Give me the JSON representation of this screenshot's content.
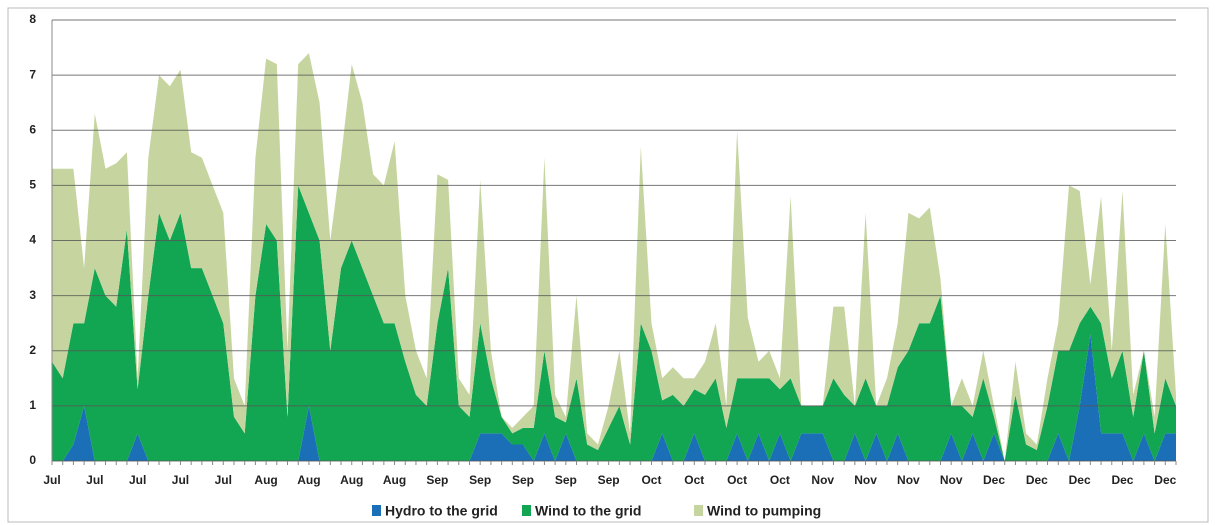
{
  "chart_data": {
    "type": "stacked-area",
    "categories": [
      "Jul",
      null,
      null,
      null,
      "Jul",
      null,
      null,
      null,
      "Jul",
      null,
      null,
      null,
      "Jul",
      null,
      null,
      null,
      "Jul",
      null,
      null,
      null,
      "Aug",
      null,
      null,
      null,
      "Aug",
      null,
      null,
      null,
      "Aug",
      null,
      null,
      null,
      "Aug",
      null,
      null,
      null,
      "Sep",
      null,
      null,
      null,
      "Sep",
      null,
      null,
      null,
      "Sep",
      null,
      null,
      null,
      "Sep",
      null,
      null,
      null,
      "Sep",
      null,
      null,
      null,
      "Oct",
      null,
      null,
      null,
      "Oct",
      null,
      null,
      null,
      "Oct",
      null,
      null,
      null,
      "Oct",
      null,
      null,
      null,
      "Nov",
      null,
      null,
      null,
      "Nov",
      null,
      null,
      null,
      "Nov",
      null,
      null,
      null,
      "Nov",
      null,
      null,
      null,
      "Dec",
      null,
      null,
      null,
      "Dec",
      null,
      null,
      null,
      "Dec",
      null,
      null,
      null,
      "Dec",
      null,
      null,
      null,
      "Dec",
      null
    ],
    "series": [
      {
        "name": "Hydro to the grid",
        "color": "#1a6fb7",
        "values": [
          0,
          0,
          0.3,
          1.0,
          0,
          0,
          0,
          0,
          0.5,
          0,
          0,
          0,
          0,
          0,
          0,
          0,
          0,
          0,
          0,
          0,
          0,
          0,
          0,
          0,
          1.0,
          0,
          0,
          0,
          0,
          0,
          0,
          0,
          0,
          0,
          0,
          0,
          0,
          0,
          0,
          0,
          0.5,
          0.5,
          0.5,
          0.3,
          0.3,
          0,
          0.5,
          0,
          0.5,
          0,
          0,
          0,
          0,
          0,
          0,
          0,
          0,
          0.5,
          0,
          0,
          0.5,
          0,
          0,
          0,
          0.5,
          0,
          0.5,
          0,
          0.5,
          0,
          0.5,
          0.5,
          0.5,
          0,
          0,
          0.5,
          0,
          0.5,
          0,
          0.5,
          0,
          0,
          0,
          0,
          0.5,
          0,
          0.5,
          0,
          0.5,
          0,
          0,
          0,
          0,
          0,
          0.5,
          0,
          1.0,
          2.3,
          0.5,
          0.5,
          0.5,
          0,
          0.5,
          0,
          0.5,
          0.5
        ]
      },
      {
        "name": "Wind to the grid",
        "color": "#13a652",
        "values": [
          1.8,
          1.5,
          2.2,
          1.5,
          3.5,
          3.0,
          2.8,
          4.2,
          0.8,
          3.0,
          4.5,
          4.0,
          4.5,
          3.5,
          3.5,
          3.0,
          2.5,
          0.8,
          0.5,
          3.0,
          4.3,
          4.0,
          0.8,
          5.0,
          3.5,
          4.0,
          2.0,
          3.5,
          4.0,
          3.5,
          3.0,
          2.5,
          2.5,
          1.8,
          1.2,
          1.0,
          2.5,
          3.5,
          1.0,
          0.8,
          2.0,
          1.0,
          0.3,
          0.2,
          0.3,
          0.6,
          1.5,
          0.8,
          0.2,
          1.5,
          0.3,
          0.2,
          0.6,
          1.0,
          0.3,
          2.5,
          2.0,
          0.6,
          1.2,
          1.0,
          0.8,
          1.2,
          1.5,
          0.6,
          1.0,
          1.5,
          1.0,
          1.5,
          0.8,
          1.5,
          0.5,
          0.5,
          0.5,
          1.5,
          1.2,
          0.5,
          1.5,
          0.5,
          1.0,
          1.2,
          2.0,
          2.5,
          2.5,
          3.0,
          0.5,
          1.0,
          0.3,
          1.5,
          0.3,
          0,
          1.2,
          0.3,
          0.2,
          1.0,
          1.5,
          2.0,
          1.5,
          0.5,
          2.0,
          1.0,
          1.5,
          0.8,
          1.5,
          0.5,
          1.0,
          0.5
        ]
      },
      {
        "name": "Wind to pumping",
        "color": "#c6d5a0",
        "values": [
          3.5,
          3.8,
          2.8,
          1.0,
          2.8,
          2.3,
          2.6,
          1.4,
          0.2,
          2.5,
          2.5,
          2.8,
          2.6,
          2.1,
          2.0,
          2.0,
          2.0,
          0.7,
          0.5,
          2.5,
          3.0,
          3.2,
          1.2,
          2.2,
          2.9,
          2.5,
          2.0,
          2.0,
          3.2,
          3.0,
          2.2,
          2.5,
          3.3,
          1.2,
          0.8,
          0.5,
          2.7,
          1.6,
          0.5,
          0.4,
          2.6,
          0.5,
          0,
          0.1,
          0.2,
          0.4,
          3.5,
          0.4,
          0.1,
          1.5,
          0.2,
          0.1,
          0.4,
          1.0,
          0.2,
          3.2,
          0.5,
          0.4,
          0.5,
          0.5,
          0.2,
          0.6,
          1.0,
          0.4,
          4.5,
          1.1,
          0.3,
          0.5,
          0.2,
          3.3,
          0,
          0,
          0,
          1.3,
          1.6,
          0,
          3.0,
          0,
          0.5,
          0.8,
          2.5,
          1.9,
          2.1,
          0.3,
          0,
          0.5,
          0.2,
          0.5,
          0.2,
          0,
          0.6,
          0.2,
          0.1,
          0.5,
          0.5,
          3.0,
          2.4,
          0.4,
          2.3,
          0.5,
          2.9,
          0.4,
          0,
          0.3,
          2.8,
          0.2
        ]
      }
    ],
    "ylim": [
      0,
      8
    ],
    "yticks": [
      0,
      1,
      2,
      3,
      4,
      5,
      6,
      7,
      8
    ],
    "grid": true,
    "legend": "bottom"
  }
}
